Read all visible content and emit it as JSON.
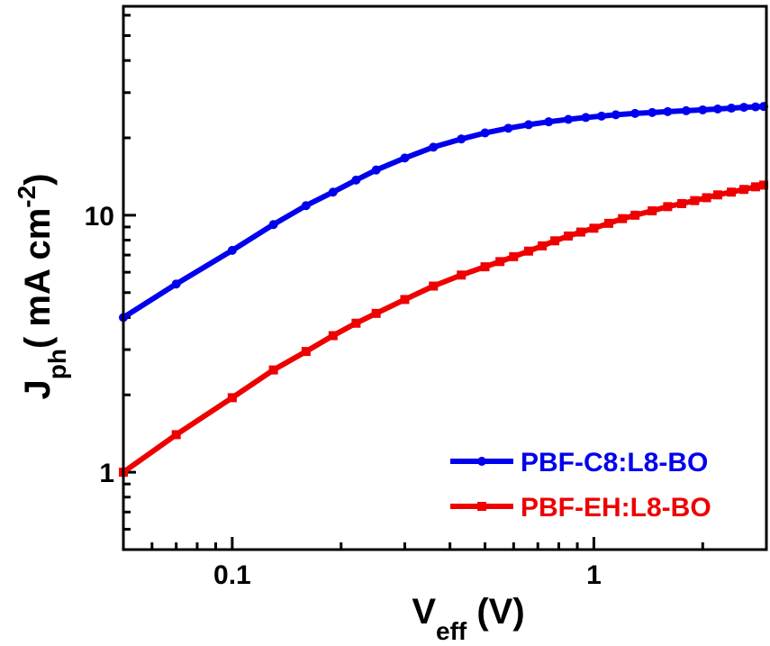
{
  "chart_data": {
    "type": "line",
    "xscale": "log",
    "yscale": "log",
    "xlim": [
      0.05,
      3.0
    ],
    "ylim": [
      0.5,
      65
    ],
    "x_ticks": [
      {
        "value": 0.1,
        "label": "0.1"
      },
      {
        "value": 1,
        "label": "1"
      }
    ],
    "y_ticks": [
      {
        "value": 1,
        "label": "1"
      },
      {
        "value": 10,
        "label": "10"
      }
    ],
    "xlabel": {
      "main": "V",
      "sub": "eff",
      "rest": " (V)"
    },
    "ylabel": {
      "main": "J",
      "sub": "ph",
      "rest": "( mA cm",
      "sup": "-2",
      "end": ")"
    },
    "legend_position": "bottom-right",
    "series": [
      {
        "name": "PBF-C8:L8-BO",
        "color": "#0000EE",
        "marker": "circle",
        "x": [
          0.05,
          0.07,
          0.1,
          0.13,
          0.16,
          0.19,
          0.22,
          0.25,
          0.3,
          0.36,
          0.43,
          0.5,
          0.58,
          0.66,
          0.75,
          0.85,
          0.95,
          1.05,
          1.15,
          1.3,
          1.45,
          1.6,
          1.8,
          2.0,
          2.2,
          2.4,
          2.6,
          2.8,
          2.95
        ],
        "y": [
          4.0,
          5.4,
          7.3,
          9.2,
          10.9,
          12.3,
          13.7,
          15.0,
          16.7,
          18.4,
          19.8,
          20.9,
          21.8,
          22.5,
          23.1,
          23.6,
          24.0,
          24.3,
          24.6,
          24.9,
          25.1,
          25.3,
          25.5,
          25.7,
          25.9,
          26.1,
          26.3,
          26.4,
          26.5
        ]
      },
      {
        "name": "PBF-EH:L8-BO",
        "color": "#EE0000",
        "marker": "square",
        "x": [
          0.05,
          0.07,
          0.1,
          0.13,
          0.16,
          0.19,
          0.22,
          0.25,
          0.3,
          0.36,
          0.43,
          0.5,
          0.55,
          0.6,
          0.66,
          0.72,
          0.78,
          0.85,
          0.92,
          1.0,
          1.1,
          1.2,
          1.3,
          1.45,
          1.6,
          1.75,
          1.9,
          2.05,
          2.2,
          2.4,
          2.6,
          2.8,
          2.95
        ],
        "y": [
          1.0,
          1.4,
          1.95,
          2.5,
          2.95,
          3.4,
          3.8,
          4.15,
          4.7,
          5.3,
          5.85,
          6.3,
          6.6,
          6.9,
          7.25,
          7.6,
          7.95,
          8.3,
          8.6,
          8.9,
          9.3,
          9.7,
          10.0,
          10.4,
          10.8,
          11.1,
          11.4,
          11.7,
          12.0,
          12.3,
          12.6,
          12.9,
          13.1
        ]
      }
    ]
  }
}
